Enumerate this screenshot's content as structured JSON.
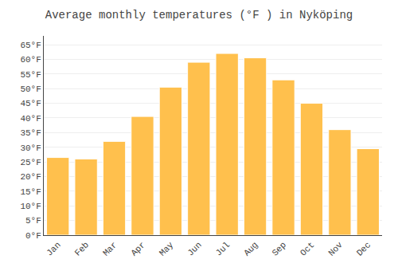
{
  "chart_data": {
    "type": "bar",
    "title": "Average monthly temperatures (°F ) in Nyköping",
    "categories": [
      "Jan",
      "Feb",
      "Mar",
      "Apr",
      "May",
      "Jun",
      "Jul",
      "Aug",
      "Sep",
      "Oct",
      "Nov",
      "Dec"
    ],
    "values": [
      26.5,
      26.0,
      32.0,
      40.5,
      50.5,
      59.0,
      62.0,
      60.5,
      53.0,
      45.0,
      36.0,
      29.5
    ],
    "color": "#FFC04D",
    "ylim": [
      0,
      68
    ],
    "yticks": [
      {
        "value": 0,
        "label": "0°F"
      },
      {
        "value": 5,
        "label": "5°F"
      },
      {
        "value": 10,
        "label": "10°F"
      },
      {
        "value": 15,
        "label": "15°F"
      },
      {
        "value": 20,
        "label": "20°F"
      },
      {
        "value": 25,
        "label": "25°F"
      },
      {
        "value": 30,
        "label": "30°F"
      },
      {
        "value": 35,
        "label": "35°F"
      },
      {
        "value": 40,
        "label": "40°F"
      },
      {
        "value": 45,
        "label": "45°F"
      },
      {
        "value": 50,
        "label": "50°F"
      },
      {
        "value": 55,
        "label": "55°F"
      },
      {
        "value": 60,
        "label": "60°F"
      },
      {
        "value": 65,
        "label": "65°F"
      }
    ],
    "grid": true
  }
}
